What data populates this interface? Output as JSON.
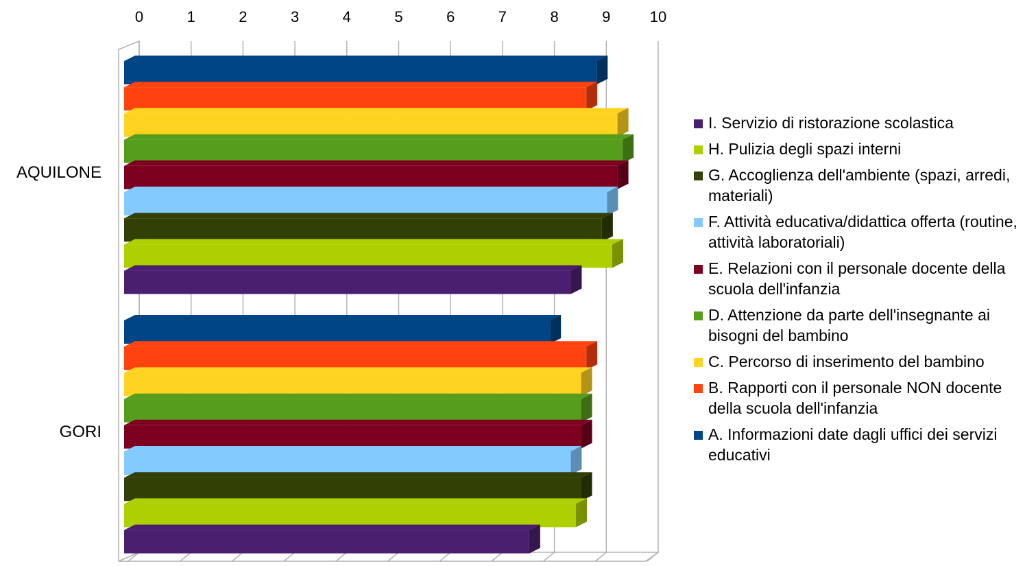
{
  "chart_data": {
    "type": "bar",
    "orientation": "horizontal",
    "categories": [
      "AQUILONE",
      "GORI"
    ],
    "xlim": [
      0,
      10
    ],
    "ticks": [
      "0",
      "1",
      "2",
      "3",
      "4",
      "5",
      "6",
      "7",
      "8",
      "9",
      "10"
    ],
    "grid": true,
    "legend_position": "right",
    "series": [
      {
        "name": "A. Informazioni date dagli uffici dei servizi educativi",
        "color": "#004586",
        "values": [
          9.0,
          8.1
        ]
      },
      {
        "name": "B. Rapporti con il personale NON docente della scuola dell'infanzia",
        "color": "#ff420e",
        "values": [
          8.8,
          8.8
        ]
      },
      {
        "name": "C. Percorso di inserimento del bambino",
        "color": "#ffd320",
        "values": [
          9.4,
          8.7
        ]
      },
      {
        "name": "D. Attenzione da parte dell'insegnante ai bisogni del bambino",
        "color": "#579d1c",
        "values": [
          9.5,
          8.7
        ]
      },
      {
        "name": "E. Relazioni con il personale docente della scuola dell'infanzia",
        "color": "#7e0021",
        "values": [
          9.4,
          8.7
        ]
      },
      {
        "name": "F. Attività educativa/didattica offerta (routine, attività laboratoriali)",
        "color": "#83caff",
        "values": [
          9.2,
          8.5
        ]
      },
      {
        "name": "G. Accoglienza dell'ambiente (spazi, arredi, materiali)",
        "color": "#314004",
        "values": [
          9.1,
          8.7
        ]
      },
      {
        "name": "H. Pulizia degli spazi interni",
        "color": "#aecf00",
        "values": [
          9.3,
          8.6
        ]
      },
      {
        "name": "I. Servizio di ristorazione scolastica",
        "color": "#4b1f6f",
        "values": [
          8.5,
          7.7
        ]
      }
    ]
  },
  "legend": [
    {
      "label": "I. Servizio di ristorazione scolastica",
      "color": "#4b1f6f"
    },
    {
      "label": "H. Pulizia degli spazi interni",
      "color": "#aecf00"
    },
    {
      "label": "G. Accoglienza dell'ambiente (spazi, arredi, materiali)",
      "color": "#314004"
    },
    {
      "label": "F. Attività educativa/didattica offerta (routine, attività laboratoriali)",
      "color": "#83caff"
    },
    {
      "label": "E. Relazioni con il personale docente della scuola dell'infanzia",
      "color": "#7e0021"
    },
    {
      "label": "D. Attenzione da parte dell'insegnante ai bisogni del bambino",
      "color": "#579d1c"
    },
    {
      "label": "C. Percorso di inserimento del bambino",
      "color": "#ffd320"
    },
    {
      "label": "B. Rapporti con il personale NON docente della scuola dell'infanzia",
      "color": "#ff420e"
    },
    {
      "label": "A. Informazioni date dagli uffici dei servizi educativi",
      "color": "#004586"
    }
  ]
}
